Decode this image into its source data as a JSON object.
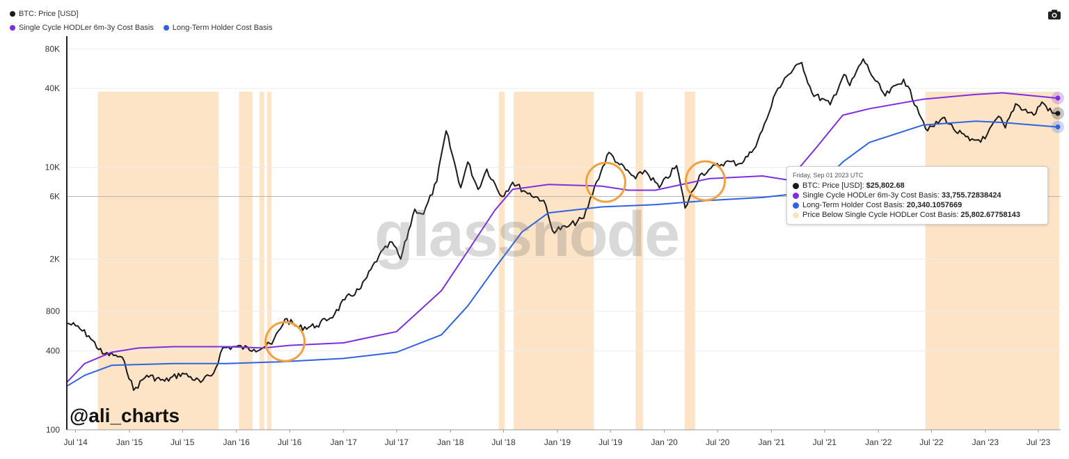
{
  "legend": {
    "items": [
      {
        "label": "BTC: Price [USD]",
        "color": "#1a1a1a"
      },
      {
        "label": "Single Cycle HODLer 6m-3y Cost Basis",
        "color": "#7b2fe0"
      },
      {
        "label": "Long-Term Holder Cost Basis",
        "color": "#2f62e0"
      }
    ]
  },
  "toolbar": {
    "camera_icon": "camera-icon"
  },
  "watermark": "glassnode",
  "author": "@ali_charts",
  "tooltip": {
    "date": "Friday, Sep 01 2023 UTC",
    "rows": [
      {
        "label": "BTC: Price [USD]:",
        "value": "$25,802.68",
        "color": "#1a1a1a"
      },
      {
        "label": "Single Cycle HODLer 6m-3y Cost Basis:",
        "value": "33,755.72838424",
        "color": "#7b2fe0"
      },
      {
        "label": "Long-Term Holder Cost Basis:",
        "value": "20,340.1057669",
        "color": "#2f62e0"
      },
      {
        "label": "Price Below Single Cycle HODLer Cost Basis:",
        "value": "25,802.67758143",
        "color": "#fde3c4"
      }
    ]
  },
  "chart_data": {
    "type": "line",
    "x_scale": "time",
    "y_scale": "log",
    "xlim": [
      "2014-06-01",
      "2023-09-15"
    ],
    "ylim": [
      100,
      100000
    ],
    "y_ticks": [
      {
        "value": 100,
        "label": "100"
      },
      {
        "value": 400,
        "label": "400"
      },
      {
        "value": 800,
        "label": "800"
      },
      {
        "value": 2000,
        "label": "2K"
      },
      {
        "value": 6000,
        "label": "6K"
      },
      {
        "value": 10000,
        "label": "10K"
      },
      {
        "value": 40000,
        "label": "40K"
      },
      {
        "value": 80000,
        "label": "80K"
      }
    ],
    "x_ticks": [
      {
        "date": "2014-07-01",
        "label": "Jul '14"
      },
      {
        "date": "2015-01-01",
        "label": "Jan '15"
      },
      {
        "date": "2015-07-01",
        "label": "Jul '15"
      },
      {
        "date": "2016-01-01",
        "label": "Jan '16"
      },
      {
        "date": "2016-07-01",
        "label": "Jul '16"
      },
      {
        "date": "2017-01-01",
        "label": "Jan '17"
      },
      {
        "date": "2017-07-01",
        "label": "Jul '17"
      },
      {
        "date": "2018-01-01",
        "label": "Jan '18"
      },
      {
        "date": "2018-07-01",
        "label": "Jul '18"
      },
      {
        "date": "2019-01-01",
        "label": "Jan '19"
      },
      {
        "date": "2019-07-01",
        "label": "Jul '19"
      },
      {
        "date": "2020-01-01",
        "label": "Jan '20"
      },
      {
        "date": "2020-07-01",
        "label": "Jul '20"
      },
      {
        "date": "2021-01-01",
        "label": "Jan '21"
      },
      {
        "date": "2021-07-01",
        "label": "Jul '21"
      },
      {
        "date": "2022-01-01",
        "label": "Jan '22"
      },
      {
        "date": "2022-07-01",
        "label": "Jul '22"
      },
      {
        "date": "2023-01-01",
        "label": "Jan '23"
      },
      {
        "date": "2023-07-01",
        "label": "Jul '23"
      }
    ],
    "reference_line": 6000,
    "series": [
      {
        "name": "BTC: Price [USD]",
        "color": "#1a1a1a",
        "points": [
          [
            "2014-06-01",
            650
          ],
          [
            "2014-07-01",
            620
          ],
          [
            "2014-08-15",
            520
          ],
          [
            "2014-10-01",
            380
          ],
          [
            "2014-11-15",
            370
          ],
          [
            "2014-12-15",
            330
          ],
          [
            "2015-01-15",
            200
          ],
          [
            "2015-03-01",
            260
          ],
          [
            "2015-05-01",
            235
          ],
          [
            "2015-07-01",
            270
          ],
          [
            "2015-09-01",
            230
          ],
          [
            "2015-10-15",
            270
          ],
          [
            "2015-11-15",
            420
          ],
          [
            "2016-01-01",
            430
          ],
          [
            "2016-03-01",
            410
          ],
          [
            "2016-05-01",
            450
          ],
          [
            "2016-06-15",
            700
          ],
          [
            "2016-08-01",
            600
          ],
          [
            "2016-10-01",
            620
          ],
          [
            "2016-12-01",
            760
          ],
          [
            "2017-01-05",
            980
          ],
          [
            "2017-03-01",
            1200
          ],
          [
            "2017-05-01",
            2100
          ],
          [
            "2017-06-15",
            2700
          ],
          [
            "2017-07-15",
            2000
          ],
          [
            "2017-09-01",
            4800
          ],
          [
            "2017-10-01",
            4400
          ],
          [
            "2017-11-15",
            7800
          ],
          [
            "2017-12-17",
            19000
          ],
          [
            "2018-02-05",
            7000
          ],
          [
            "2018-03-01",
            11000
          ],
          [
            "2018-04-05",
            6800
          ],
          [
            "2018-05-05",
            9700
          ],
          [
            "2018-06-25",
            6000
          ],
          [
            "2018-08-01",
            7700
          ],
          [
            "2018-09-15",
            6500
          ],
          [
            "2018-11-15",
            5600
          ],
          [
            "2018-12-15",
            3300
          ],
          [
            "2019-02-01",
            3500
          ],
          [
            "2019-04-01",
            4100
          ],
          [
            "2019-05-15",
            7800
          ],
          [
            "2019-06-26",
            13000
          ],
          [
            "2019-08-01",
            10500
          ],
          [
            "2019-09-25",
            8200
          ],
          [
            "2019-10-26",
            9500
          ],
          [
            "2019-12-15",
            7000
          ],
          [
            "2020-02-12",
            10300
          ],
          [
            "2020-03-12",
            4900
          ],
          [
            "2020-04-30",
            8700
          ],
          [
            "2020-06-01",
            9600
          ],
          [
            "2020-07-28",
            11000
          ],
          [
            "2020-09-15",
            10700
          ],
          [
            "2020-10-25",
            13000
          ],
          [
            "2020-11-30",
            19000
          ],
          [
            "2020-12-31",
            29000
          ],
          [
            "2021-01-15",
            37000
          ],
          [
            "2021-02-15",
            48000
          ],
          [
            "2021-04-14",
            63000
          ],
          [
            "2021-05-19",
            37000
          ],
          [
            "2021-07-20",
            30000
          ],
          [
            "2021-09-05",
            51000
          ],
          [
            "2021-09-25",
            42000
          ],
          [
            "2021-11-10",
            67000
          ],
          [
            "2021-12-15",
            48000
          ],
          [
            "2022-01-24",
            35000
          ],
          [
            "2022-03-28",
            47000
          ],
          [
            "2022-05-12",
            29000
          ],
          [
            "2022-06-18",
            19000
          ],
          [
            "2022-08-15",
            24000
          ],
          [
            "2022-09-15",
            19500
          ],
          [
            "2022-11-09",
            16000
          ],
          [
            "2022-12-31",
            16500
          ],
          [
            "2023-02-15",
            24500
          ],
          [
            "2023-03-10",
            20000
          ],
          [
            "2023-04-14",
            30500
          ],
          [
            "2023-06-15",
            25000
          ],
          [
            "2023-07-13",
            31500
          ],
          [
            "2023-08-17",
            26000
          ],
          [
            "2023-09-01",
            25800
          ]
        ]
      },
      {
        "name": "Single Cycle HODLer 6m-3y Cost Basis",
        "color": "#7b2fe0",
        "points": [
          [
            "2014-06-01",
            230
          ],
          [
            "2014-08-01",
            320
          ],
          [
            "2014-11-01",
            390
          ],
          [
            "2015-02-01",
            420
          ],
          [
            "2015-06-01",
            430
          ],
          [
            "2015-12-01",
            430
          ],
          [
            "2016-04-01",
            420
          ],
          [
            "2016-07-01",
            440
          ],
          [
            "2017-01-01",
            460
          ],
          [
            "2017-07-01",
            560
          ],
          [
            "2017-12-01",
            1150
          ],
          [
            "2018-03-01",
            2300
          ],
          [
            "2018-06-01",
            4700
          ],
          [
            "2018-08-01",
            6800
          ],
          [
            "2018-12-01",
            7400
          ],
          [
            "2019-06-01",
            7200
          ],
          [
            "2019-09-01",
            6700
          ],
          [
            "2019-12-01",
            6700
          ],
          [
            "2020-06-01",
            8200
          ],
          [
            "2020-12-01",
            8600
          ],
          [
            "2021-03-01",
            8000
          ],
          [
            "2021-06-01",
            14000
          ],
          [
            "2021-09-01",
            25000
          ],
          [
            "2021-12-01",
            28000
          ],
          [
            "2022-06-01",
            33000
          ],
          [
            "2022-12-01",
            36000
          ],
          [
            "2023-03-01",
            37000
          ],
          [
            "2023-09-01",
            33755
          ]
        ]
      },
      {
        "name": "Long-Term Holder Cost Basis",
        "color": "#2f62e0",
        "points": [
          [
            "2014-06-01",
            215
          ],
          [
            "2014-08-01",
            260
          ],
          [
            "2014-11-01",
            310
          ],
          [
            "2015-06-01",
            320
          ],
          [
            "2015-12-01",
            320
          ],
          [
            "2016-06-01",
            330
          ],
          [
            "2017-01-01",
            350
          ],
          [
            "2017-07-01",
            390
          ],
          [
            "2017-12-01",
            530
          ],
          [
            "2018-03-01",
            880
          ],
          [
            "2018-06-01",
            1700
          ],
          [
            "2018-09-01",
            3200
          ],
          [
            "2018-12-01",
            4500
          ],
          [
            "2019-06-01",
            5000
          ],
          [
            "2019-12-01",
            5200
          ],
          [
            "2020-06-01",
            5600
          ],
          [
            "2020-12-01",
            5900
          ],
          [
            "2021-03-01",
            6200
          ],
          [
            "2021-06-01",
            6800
          ],
          [
            "2021-09-01",
            11000
          ],
          [
            "2021-12-01",
            15500
          ],
          [
            "2022-06-01",
            21000
          ],
          [
            "2022-12-01",
            22500
          ],
          [
            "2023-03-01",
            22000
          ],
          [
            "2023-09-01",
            20340
          ]
        ]
      }
    ],
    "shaded_regions": {
      "name": "Price Below Single Cycle HODLer Cost Basis",
      "color": "#fde3c4",
      "ranges": [
        [
          "2014-09-15",
          "2015-11-01"
        ],
        [
          "2016-01-10",
          "2016-02-25"
        ],
        [
          "2016-03-20",
          "2016-04-05"
        ],
        [
          "2016-04-15",
          "2016-04-30"
        ],
        [
          "2018-06-15",
          "2018-07-05"
        ],
        [
          "2018-08-05",
          "2019-05-05"
        ],
        [
          "2019-09-25",
          "2019-10-20"
        ],
        [
          "2020-03-10",
          "2020-04-15"
        ],
        [
          "2022-06-10",
          "2023-09-10"
        ]
      ]
    },
    "annotations": [
      {
        "type": "circle",
        "date": "2016-06-15",
        "value": 470
      },
      {
        "type": "circle",
        "date": "2019-06-15",
        "value": 7700
      },
      {
        "type": "circle",
        "date": "2020-05-20",
        "value": 7900
      }
    ]
  }
}
